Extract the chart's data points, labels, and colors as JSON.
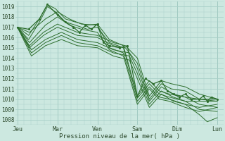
{
  "xlabel": "Pression niveau de la mer( hPa )",
  "ylim": [
    1007.5,
    1019.5
  ],
  "yticks": [
    1008,
    1009,
    1010,
    1011,
    1012,
    1013,
    1014,
    1015,
    1016,
    1017,
    1018,
    1019
  ],
  "xtick_labels": [
    "Jeu",
    "Mar",
    "Ven",
    "Sam",
    "Dim",
    "Lun"
  ],
  "xtick_positions": [
    0,
    1,
    2,
    3,
    4,
    5
  ],
  "bg_color": "#cce8e0",
  "grid_color": "#a8cfc8",
  "line_color": "#2d6e2d",
  "ensemble_lines": [
    [
      [
        0,
        1017.0
      ],
      [
        0.28,
        1016.2
      ],
      [
        0.55,
        1017.8
      ],
      [
        0.75,
        1019.2
      ],
      [
        0.95,
        1018.8
      ],
      [
        1.2,
        1017.8
      ],
      [
        1.45,
        1017.5
      ],
      [
        1.75,
        1017.2
      ],
      [
        2.0,
        1017.3
      ],
      [
        2.3,
        1015.8
      ],
      [
        2.65,
        1015.2
      ],
      [
        3.0,
        1010.3
      ],
      [
        3.3,
        1011.8
      ],
      [
        3.55,
        1010.8
      ],
      [
        3.8,
        1010.5
      ],
      [
        4.2,
        1010.2
      ],
      [
        4.55,
        1010.0
      ],
      [
        5.0,
        1010.0
      ]
    ],
    [
      [
        0,
        1017.0
      ],
      [
        0.28,
        1015.8
      ],
      [
        0.55,
        1017.5
      ],
      [
        0.75,
        1019.0
      ],
      [
        0.95,
        1018.5
      ],
      [
        1.2,
        1017.5
      ],
      [
        1.45,
        1017.2
      ],
      [
        1.75,
        1016.8
      ],
      [
        2.0,
        1017.0
      ],
      [
        2.3,
        1015.5
      ],
      [
        2.65,
        1015.0
      ],
      [
        3.0,
        1010.1
      ],
      [
        3.3,
        1011.5
      ],
      [
        3.55,
        1010.5
      ],
      [
        3.8,
        1010.2
      ],
      [
        4.2,
        1009.8
      ],
      [
        4.55,
        1009.8
      ],
      [
        5.0,
        1009.8
      ]
    ],
    [
      [
        0,
        1017.0
      ],
      [
        0.3,
        1016.5
      ],
      [
        0.7,
        1017.8
      ],
      [
        1.0,
        1018.5
      ],
      [
        1.3,
        1017.8
      ],
      [
        1.6,
        1017.3
      ],
      [
        2.0,
        1017.2
      ],
      [
        2.3,
        1015.0
      ],
      [
        2.65,
        1014.5
      ],
      [
        3.0,
        1009.8
      ],
      [
        3.3,
        1011.2
      ],
      [
        3.55,
        1010.2
      ],
      [
        3.8,
        1010.0
      ],
      [
        4.2,
        1009.5
      ],
      [
        4.55,
        1009.2
      ],
      [
        5.0,
        1009.5
      ]
    ],
    [
      [
        0,
        1017.0
      ],
      [
        0.3,
        1015.5
      ],
      [
        0.7,
        1017.2
      ],
      [
        1.0,
        1018.0
      ],
      [
        1.3,
        1017.2
      ],
      [
        1.6,
        1016.8
      ],
      [
        2.0,
        1016.5
      ],
      [
        2.3,
        1014.8
      ],
      [
        2.65,
        1014.2
      ],
      [
        3.0,
        1009.5
      ],
      [
        3.3,
        1011.0
      ],
      [
        3.55,
        1010.0
      ],
      [
        3.8,
        1009.8
      ],
      [
        4.2,
        1009.2
      ],
      [
        4.55,
        1008.8
      ],
      [
        5.0,
        1009.2
      ]
    ],
    [
      [
        0,
        1017.0
      ],
      [
        0.3,
        1015.2
      ],
      [
        0.65,
        1016.5
      ],
      [
        1.0,
        1017.3
      ],
      [
        1.5,
        1016.5
      ],
      [
        2.0,
        1016.2
      ],
      [
        2.4,
        1015.5
      ],
      [
        2.7,
        1015.2
      ],
      [
        3.0,
        1014.0
      ],
      [
        3.3,
        1010.3
      ],
      [
        3.6,
        1011.8
      ],
      [
        3.85,
        1011.5
      ],
      [
        4.2,
        1011.2
      ],
      [
        4.55,
        1010.5
      ],
      [
        5.0,
        1010.0
      ]
    ],
    [
      [
        0,
        1017.0
      ],
      [
        0.3,
        1015.0
      ],
      [
        0.65,
        1016.2
      ],
      [
        1.0,
        1017.0
      ],
      [
        1.5,
        1016.2
      ],
      [
        2.0,
        1016.0
      ],
      [
        2.4,
        1015.2
      ],
      [
        2.7,
        1015.0
      ],
      [
        3.0,
        1013.5
      ],
      [
        3.3,
        1010.0
      ],
      [
        3.6,
        1011.5
      ],
      [
        3.85,
        1011.0
      ],
      [
        4.2,
        1010.8
      ],
      [
        4.55,
        1010.0
      ],
      [
        5.0,
        1009.8
      ]
    ],
    [
      [
        0,
        1017.0
      ],
      [
        0.35,
        1014.8
      ],
      [
        0.7,
        1015.8
      ],
      [
        1.1,
        1016.5
      ],
      [
        1.5,
        1015.8
      ],
      [
        2.0,
        1015.5
      ],
      [
        2.4,
        1014.8
      ],
      [
        2.8,
        1014.5
      ],
      [
        3.0,
        1013.0
      ],
      [
        3.3,
        1009.8
      ],
      [
        3.6,
        1011.2
      ],
      [
        3.9,
        1010.5
      ],
      [
        4.2,
        1010.2
      ],
      [
        4.55,
        1009.5
      ],
      [
        5.0,
        1009.2
      ]
    ],
    [
      [
        0,
        1017.0
      ],
      [
        0.35,
        1014.5
      ],
      [
        0.7,
        1015.5
      ],
      [
        1.1,
        1016.2
      ],
      [
        1.5,
        1015.5
      ],
      [
        2.0,
        1015.2
      ],
      [
        2.4,
        1014.5
      ],
      [
        2.8,
        1014.2
      ],
      [
        3.0,
        1012.5
      ],
      [
        3.3,
        1009.5
      ],
      [
        3.6,
        1010.8
      ],
      [
        3.9,
        1010.2
      ],
      [
        4.2,
        1009.8
      ],
      [
        4.55,
        1009.0
      ],
      [
        5.0,
        1008.8
      ]
    ],
    [
      [
        0,
        1017.0
      ],
      [
        0.35,
        1014.2
      ],
      [
        0.7,
        1015.2
      ],
      [
        1.1,
        1015.8
      ],
      [
        1.5,
        1015.2
      ],
      [
        2.0,
        1015.0
      ],
      [
        2.4,
        1014.2
      ],
      [
        2.8,
        1013.8
      ],
      [
        3.0,
        1012.0
      ],
      [
        3.3,
        1009.2
      ],
      [
        3.6,
        1010.5
      ],
      [
        3.9,
        1009.8
      ],
      [
        4.2,
        1009.5
      ],
      [
        4.55,
        1008.5
      ],
      [
        4.75,
        1007.8
      ],
      [
        5.0,
        1008.2
      ]
    ]
  ],
  "marker_line": [
    [
      0,
      1017.0
    ],
    [
      0.28,
      1016.8
    ],
    [
      0.55,
      1017.8
    ],
    [
      0.75,
      1019.2
    ],
    [
      1.0,
      1018.2
    ],
    [
      1.2,
      1017.5
    ],
    [
      1.4,
      1017.0
    ],
    [
      1.55,
      1016.5
    ],
    [
      1.7,
      1017.2
    ],
    [
      1.85,
      1016.8
    ],
    [
      2.0,
      1017.3
    ],
    [
      2.15,
      1015.5
    ],
    [
      2.3,
      1015.2
    ],
    [
      2.55,
      1015.0
    ],
    [
      2.75,
      1015.2
    ],
    [
      3.0,
      1010.3
    ],
    [
      3.2,
      1012.0
    ],
    [
      3.4,
      1011.5
    ],
    [
      3.6,
      1011.8
    ],
    [
      3.75,
      1010.8
    ],
    [
      3.9,
      1010.5
    ],
    [
      4.05,
      1010.2
    ],
    [
      4.2,
      1010.5
    ],
    [
      4.35,
      1010.0
    ],
    [
      4.55,
      1010.0
    ],
    [
      4.65,
      1010.3
    ],
    [
      4.75,
      1009.8
    ],
    [
      4.85,
      1010.2
    ],
    [
      5.0,
      1010.0
    ]
  ]
}
